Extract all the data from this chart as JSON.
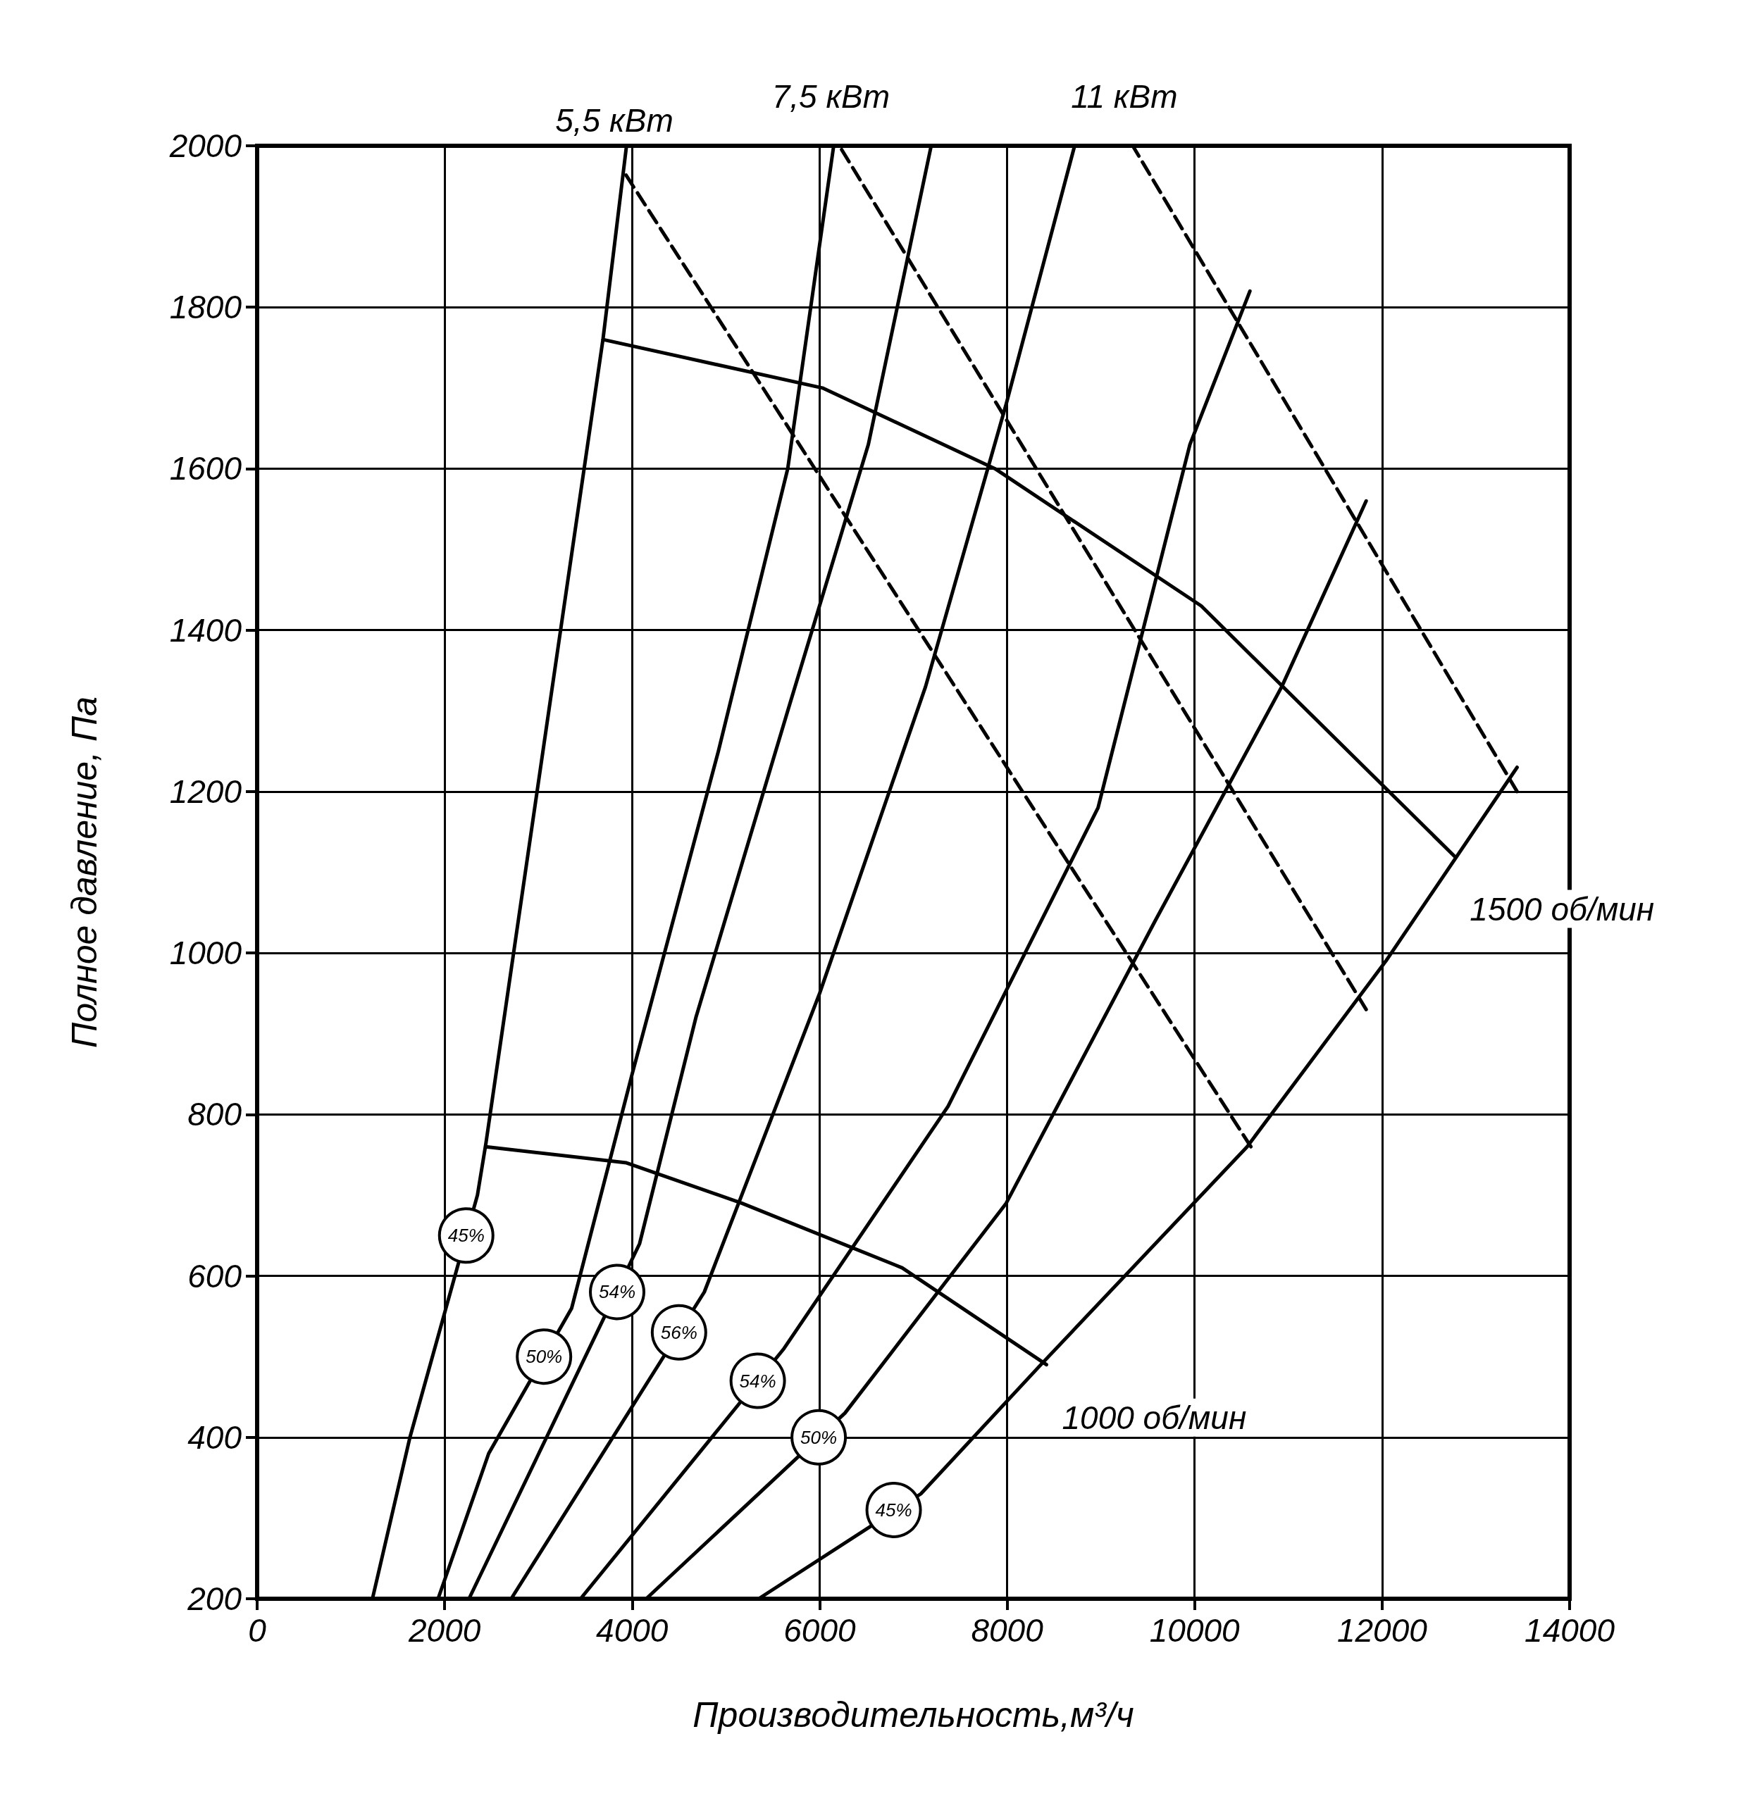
{
  "chart_data": {
    "type": "line",
    "xlabel": "Производительность,м³/ч",
    "ylabel": "Полное давление, Па",
    "xlim": [
      0,
      14000
    ],
    "xticks": [
      0,
      2000,
      4000,
      6000,
      8000,
      10000,
      12000,
      14000
    ],
    "ylim": [
      200,
      2000
    ],
    "yticks": [
      200,
      400,
      600,
      800,
      1000,
      1200,
      1400,
      1600,
      1800,
      2000
    ],
    "grid": true,
    "legend": false,
    "marker": "none",
    "line_style": "solid",
    "series": [
      {
        "color": "#000000",
        "x": [
          1230,
          1630,
          2350,
          2440,
          3100,
          3690,
          3940
        ],
        "values": [
          200,
          400,
          700,
          764,
          1291,
          1761,
          2000
        ]
      },
      {
        "color": "#000000",
        "x": [
          1930,
          2470,
          3355,
          4000,
          4920,
          5660,
          6150
        ],
        "values": [
          200,
          380,
          560,
          850,
          1250,
          1600,
          2000
        ]
      },
      {
        "color": "#000000",
        "x": [
          2260,
          4080,
          4680,
          5660,
          6520,
          7190
        ],
        "values": [
          200,
          640,
          920,
          1300,
          1630,
          2000
        ]
      },
      {
        "color": "#000000",
        "x": [
          2710,
          4770,
          6000,
          7130,
          7990,
          8720
        ],
        "values": [
          200,
          580,
          950,
          1330,
          1680,
          2000
        ]
      },
      {
        "color": "#000000",
        "x": [
          3450,
          5620,
          7370,
          8970,
          9950,
          10590
        ],
        "values": [
          200,
          510,
          810,
          1180,
          1630,
          1820
        ]
      },
      {
        "color": "#000000",
        "x": [
          4150,
          6270,
          7990,
          9580,
          10930,
          11830
        ],
        "values": [
          200,
          430,
          690,
          1040,
          1330,
          1560
        ]
      },
      {
        "color": "#000000",
        "x": [
          5350,
          7080,
          8360,
          10560,
          12040,
          13440
        ],
        "values": [
          200,
          330,
          490,
          760,
          990,
          1230
        ]
      },
      {
        "name": "1500 об/мин",
        "color": "#000000",
        "x": [
          3690,
          6030,
          7870,
          10070,
          12770
        ],
        "values": [
          1760,
          1700,
          1600,
          1430,
          1120
        ]
      },
      {
        "name": "1000 об/мин",
        "color": "#000000",
        "x": [
          2440,
          3940,
          5170,
          6880,
          8420
        ],
        "values": [
          760,
          740,
          690,
          610,
          490
        ]
      },
      {
        "name": "5,5 кВт",
        "color": "#000000",
        "line_style": "dashed",
        "x": [
          10600,
          3900
        ],
        "values": [
          760,
          1970
        ]
      },
      {
        "name": "7,5 кВт",
        "color": "#000000",
        "line_style": "dashed",
        "x": [
          11830,
          6210
        ],
        "values": [
          930,
          2000
        ]
      },
      {
        "name": "11 кВт",
        "color": "#000000",
        "line_style": "dashed",
        "x": [
          13440,
          9340
        ],
        "values": [
          1200,
          2000
        ]
      }
    ],
    "annotations": [
      {
        "text": "45%",
        "x": 2230,
        "y": 650
      },
      {
        "text": "50%",
        "x": 3060,
        "y": 500
      },
      {
        "text": "54%",
        "x": 3840,
        "y": 580
      },
      {
        "text": "56%",
        "x": 4500,
        "y": 530
      },
      {
        "text": "54%",
        "x": 5340,
        "y": 470
      },
      {
        "text": "50%",
        "x": 5990,
        "y": 400
      },
      {
        "text": "45%",
        "x": 6790,
        "y": 310
      }
    ]
  }
}
